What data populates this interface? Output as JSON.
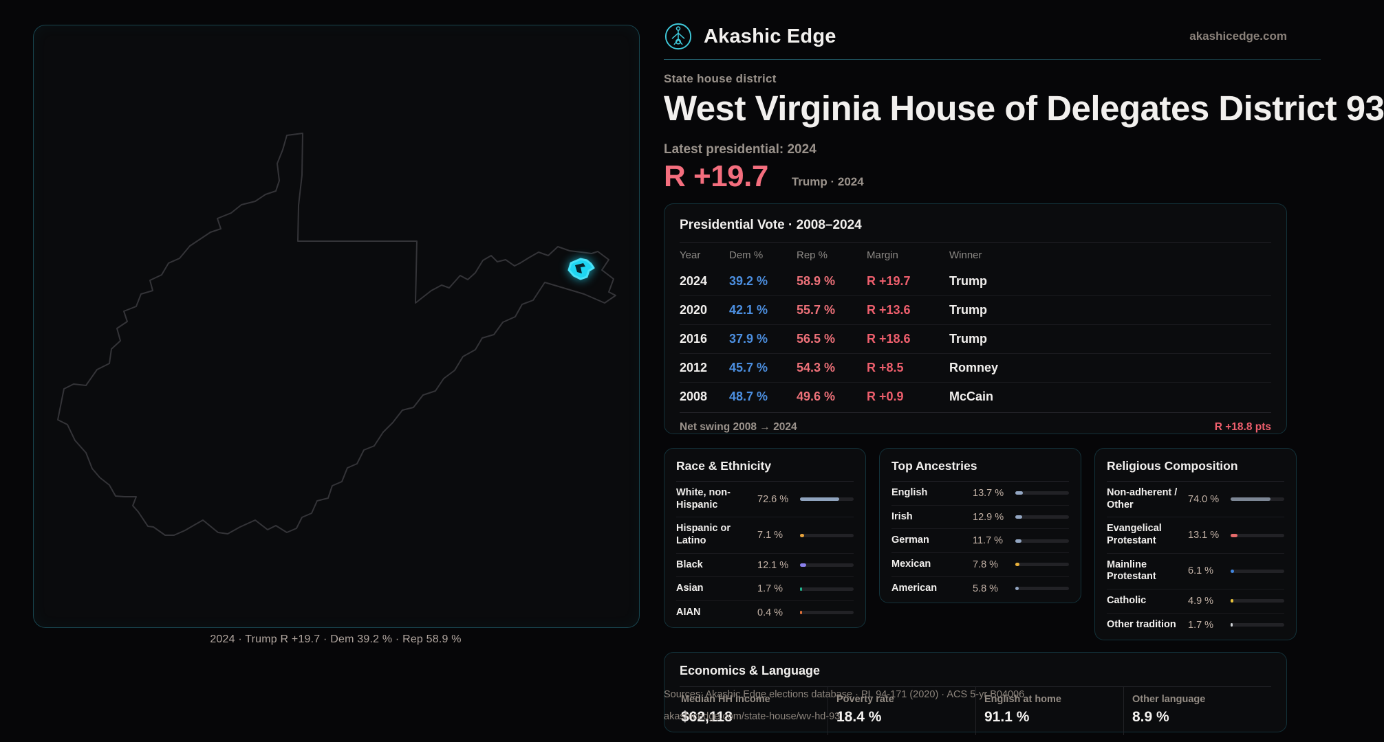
{
  "header": {
    "brand": "Akashic Edge",
    "domain": "akashicedge.com"
  },
  "hero": {
    "kicker": "State house district",
    "title": "West Virginia House of Delegates District 93",
    "latest_label": "Latest presidential: 2024",
    "margin_value": "R +19.7",
    "margin_caption": "Trump · 2024"
  },
  "map": {
    "caption": "2024 · Trump R +19.7 · Dem 39.2 % · Rep 58.9 %",
    "district_color": "#1fd6f2",
    "outline_color": "#343438"
  },
  "presidential": {
    "title": "Presidential Vote · 2008–2024",
    "columns": [
      "Year",
      "Dem %",
      "Rep %",
      "Margin",
      "Winner"
    ],
    "rows": [
      {
        "year": "2024",
        "dem": "39.2 %",
        "rep": "58.9 %",
        "margin": "R +19.7",
        "winner": "Trump"
      },
      {
        "year": "2020",
        "dem": "42.1 %",
        "rep": "55.7 %",
        "margin": "R +13.6",
        "winner": "Trump"
      },
      {
        "year": "2016",
        "dem": "37.9 %",
        "rep": "56.5 %",
        "margin": "R +18.6",
        "winner": "Trump"
      },
      {
        "year": "2012",
        "dem": "45.7 %",
        "rep": "54.3 %",
        "margin": "R +8.5",
        "winner": "Romney"
      },
      {
        "year": "2008",
        "dem": "48.7 %",
        "rep": "49.6 %",
        "margin": "R +0.9",
        "winner": "McCain"
      }
    ],
    "net_swing_label": "Net swing 2008 → 2024",
    "net_swing_value": "R +18.8 pts"
  },
  "demographics": [
    {
      "title": "Race & Ethnicity",
      "rows": [
        {
          "label": "White, non-Hispanic",
          "value": "72.6 %",
          "pct": 72.6,
          "color": "#8fa3bd"
        },
        {
          "label": "Hispanic or Latino",
          "value": "7.1 %",
          "pct": 7.1,
          "color": "#e6a23c"
        },
        {
          "label": "Black",
          "value": "12.1 %",
          "pct": 12.1,
          "color": "#8b80ec"
        },
        {
          "label": "Asian",
          "value": "1.7 %",
          "pct": 1.7,
          "color": "#22b48e"
        },
        {
          "label": "AIAN",
          "value": "0.4 %",
          "pct": 0.4,
          "color": "#dd6f38"
        }
      ]
    },
    {
      "title": "Top Ancestries",
      "rows": [
        {
          "label": "English",
          "value": "13.7 %",
          "pct": 13.7,
          "color": "#93a6c2"
        },
        {
          "label": "Irish",
          "value": "12.9 %",
          "pct": 12.9,
          "color": "#93a6c2"
        },
        {
          "label": "German",
          "value": "11.7 %",
          "pct": 11.7,
          "color": "#93a6c2"
        },
        {
          "label": "Mexican",
          "value": "7.8 %",
          "pct": 7.8,
          "color": "#e9b13a"
        },
        {
          "label": "American",
          "value": "5.8 %",
          "pct": 5.8,
          "color": "#93a6c2"
        }
      ]
    },
    {
      "title": "Religious Composition",
      "rows": [
        {
          "label": "Non-adherent / Other",
          "value": "74.0 %",
          "pct": 74.0,
          "color": "#7c8694"
        },
        {
          "label": "Evangelical Protestant",
          "value": "13.1 %",
          "pct": 13.1,
          "color": "#e46a6a"
        },
        {
          "label": "Mainline Protestant",
          "value": "6.1 %",
          "pct": 6.1,
          "color": "#4186e0"
        },
        {
          "label": "Catholic",
          "value": "4.9 %",
          "pct": 4.9,
          "color": "#e8c33c"
        },
        {
          "label": "Other tradition",
          "value": "1.7 %",
          "pct": 1.7,
          "color": "#cfd2d6"
        }
      ]
    }
  ],
  "economics": {
    "title": "Economics & Language",
    "stats": [
      {
        "label": "Median HH income",
        "value": "$62,118"
      },
      {
        "label": "Poverty rate",
        "value": "18.4 %"
      },
      {
        "label": "English at home",
        "value": "91.1 %"
      },
      {
        "label": "Other language",
        "value": "8.9 %"
      }
    ]
  },
  "sources": {
    "line1": "Sources: Akashic Edge elections database · PL 94-171 (2020) · ACS 5-yr B04006",
    "line2": "akashicedge.com/state-house/wv-hd-93"
  },
  "colors": {
    "accent_teal": "#3fc9da",
    "dem_blue": "#4c8fe0",
    "rep_red": "#ee7179",
    "margin_red": "#f46e7e",
    "district_cyan": "#1fd6f2"
  }
}
